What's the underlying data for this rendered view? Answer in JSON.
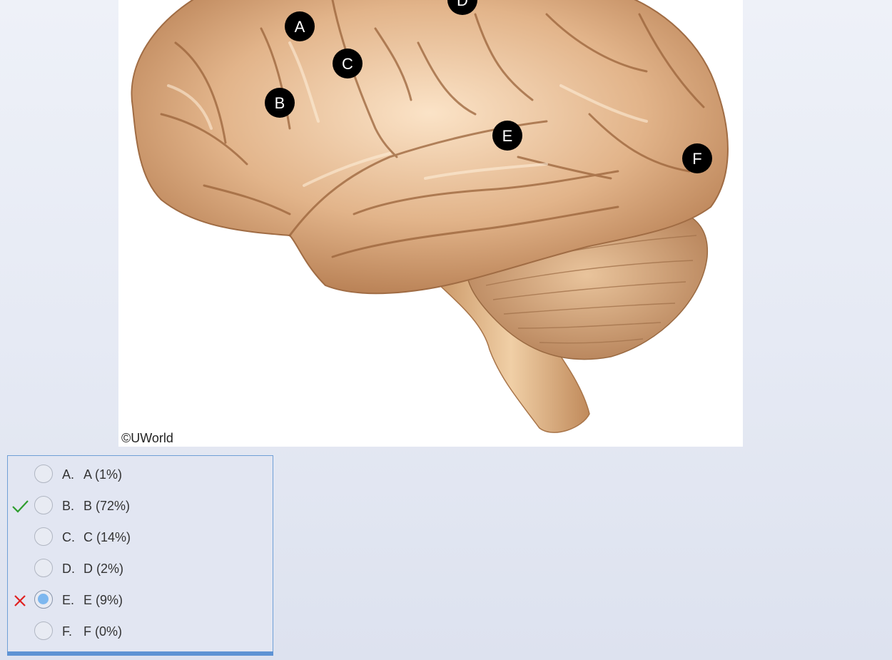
{
  "figure": {
    "copyright": "©UWorld",
    "markers": [
      "A",
      "B",
      "C",
      "D",
      "E",
      "F"
    ]
  },
  "answers": {
    "choices": [
      {
        "letter": "A.",
        "text": "A (1%)",
        "selected": false,
        "status": ""
      },
      {
        "letter": "B.",
        "text": "B (72%)",
        "selected": false,
        "status": "correct"
      },
      {
        "letter": "C.",
        "text": "C (14%)",
        "selected": false,
        "status": ""
      },
      {
        "letter": "D.",
        "text": "D (2%)",
        "selected": false,
        "status": ""
      },
      {
        "letter": "E.",
        "text": "E (9%)",
        "selected": true,
        "status": "incorrect"
      },
      {
        "letter": "F.",
        "text": "F (0%)",
        "selected": false,
        "status": ""
      }
    ]
  },
  "colors": {
    "correct": "#2e9e2e",
    "incorrect": "#e02020",
    "selected_radio": "#7db7ef",
    "panel_border": "#6f9fd6",
    "brain": "#d9a87c"
  },
  "icons": {
    "correct": "checkmark-icon",
    "incorrect": "x-mark-icon"
  }
}
